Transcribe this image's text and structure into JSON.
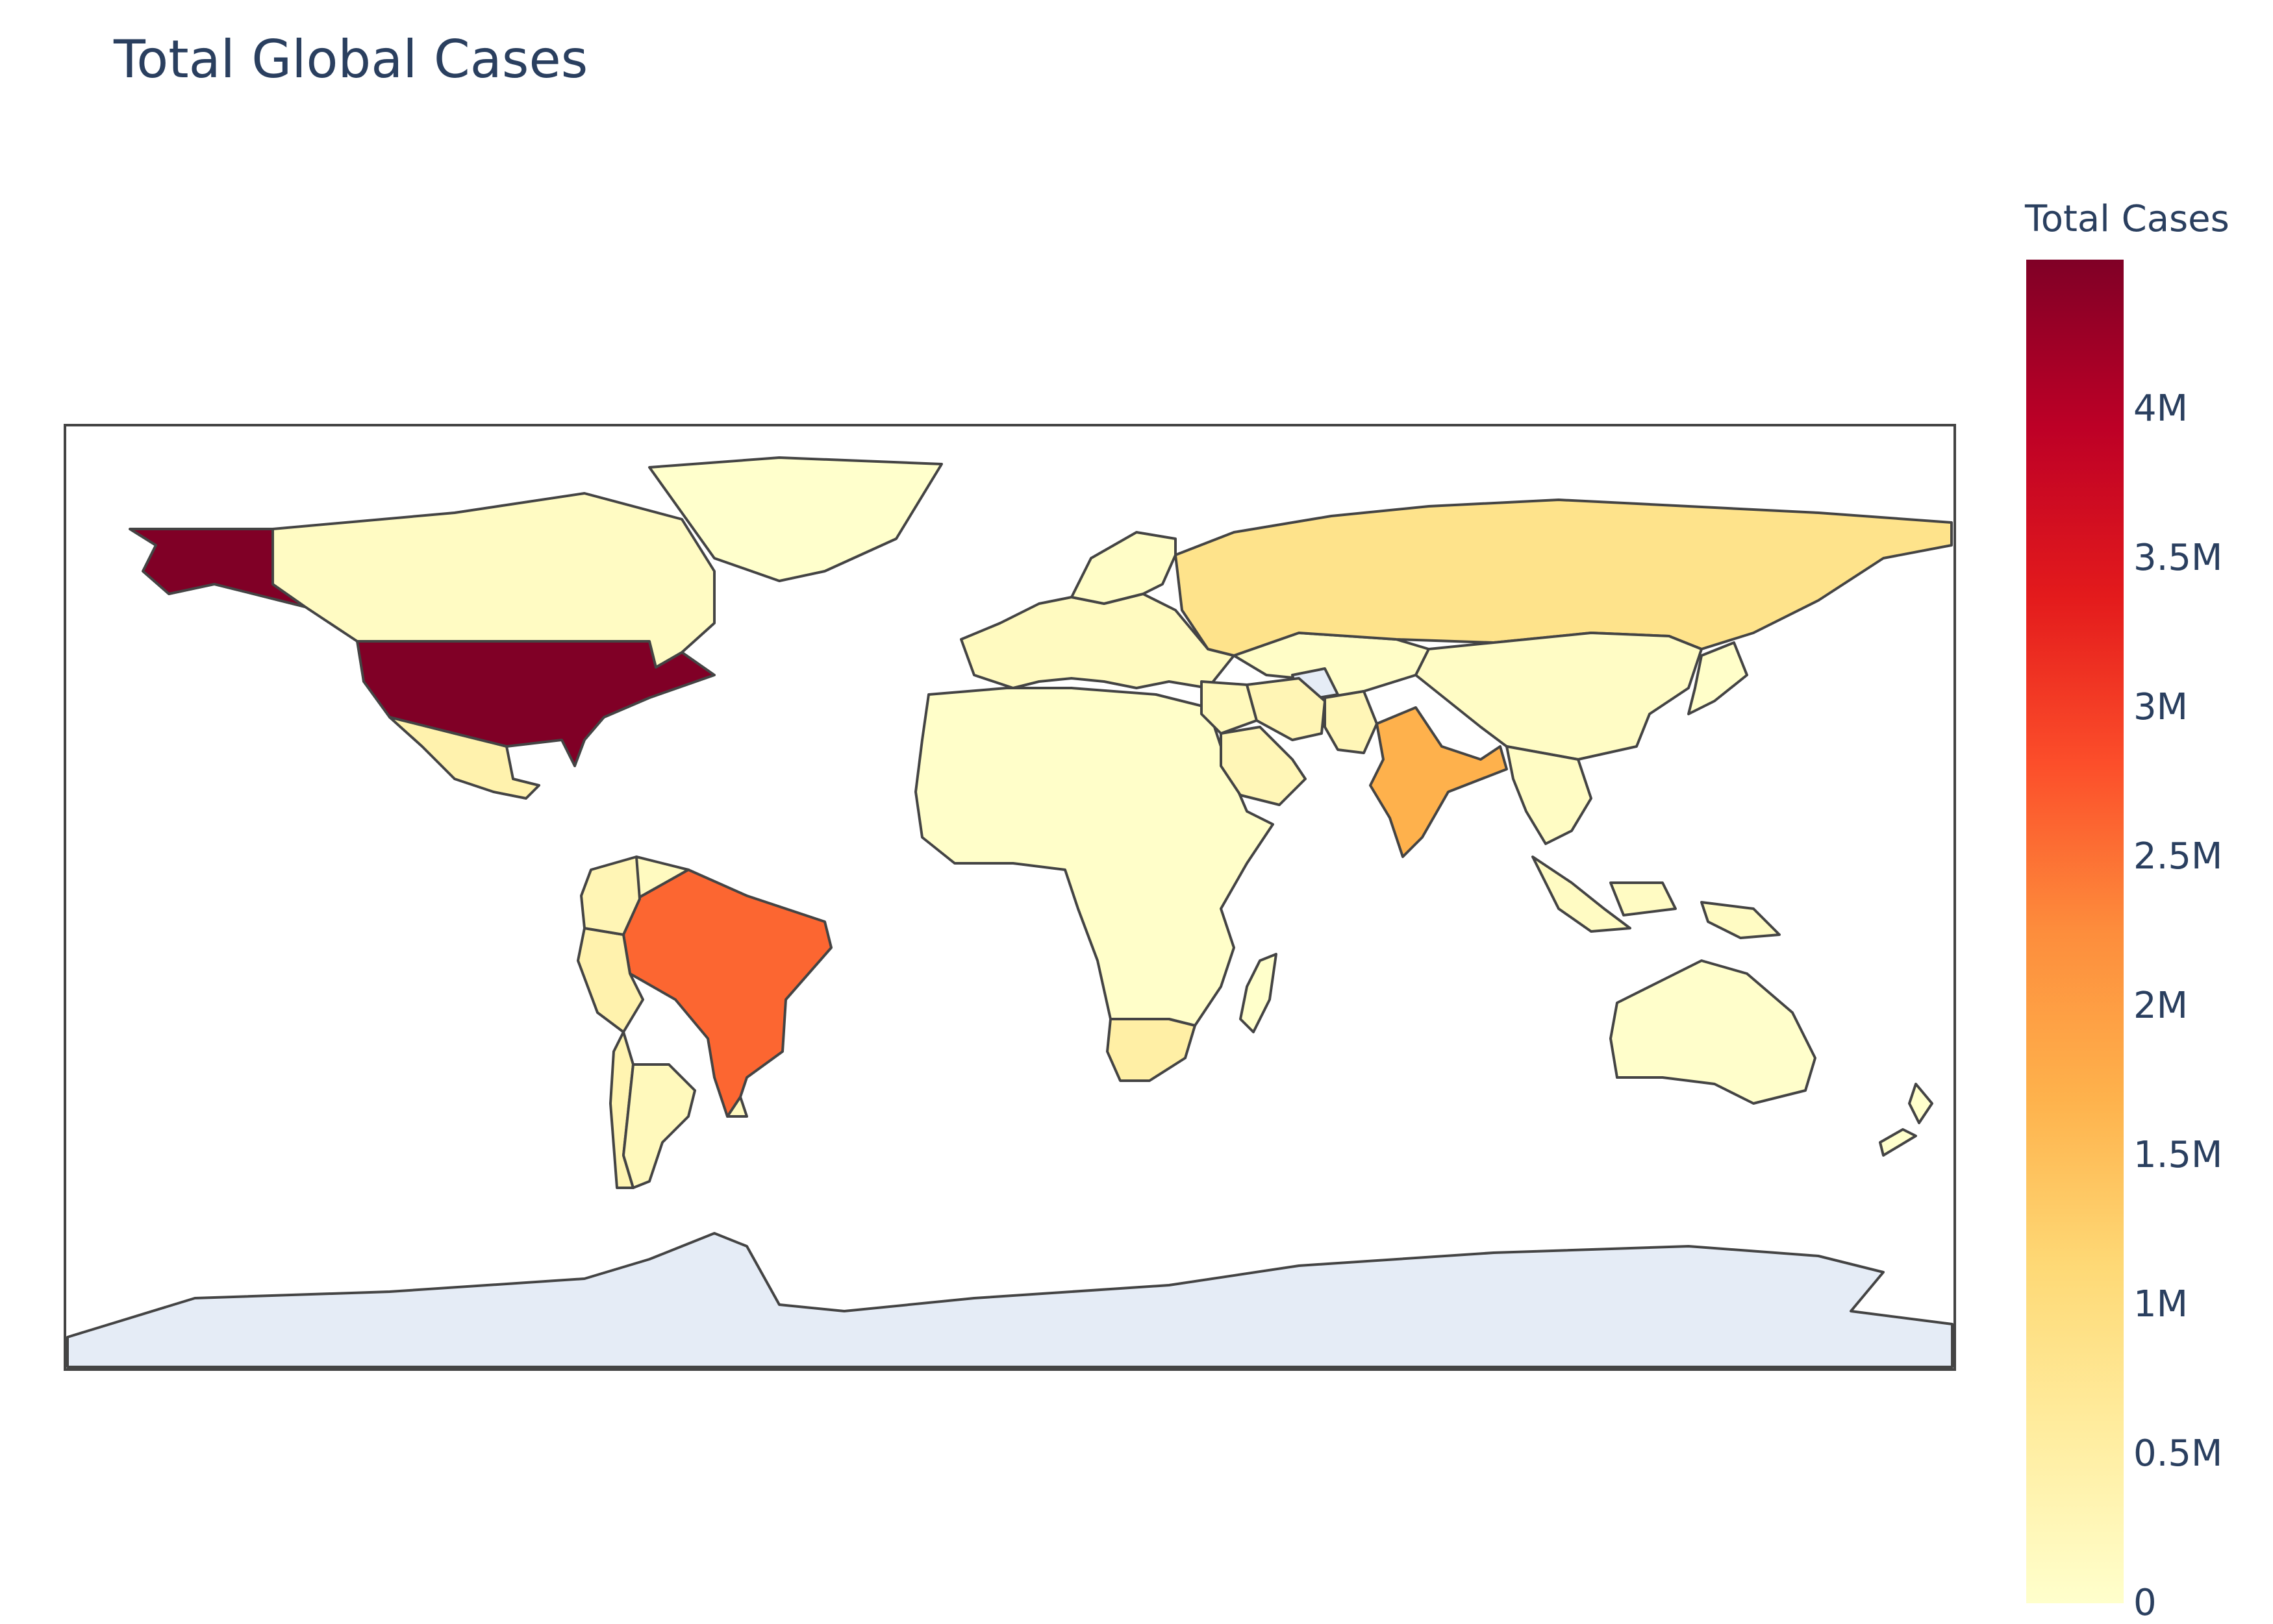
{
  "title": "Total Global Cases",
  "colorbar": {
    "title": "Total Cases",
    "max": 4500000,
    "ticks": [
      {
        "label": "0",
        "value": 0
      },
      {
        "label": "0.5M",
        "value": 500000
      },
      {
        "label": "1M",
        "value": 1000000
      },
      {
        "label": "1.5M",
        "value": 1500000
      },
      {
        "label": "2M",
        "value": 2000000
      },
      {
        "label": "2.5M",
        "value": 2500000
      },
      {
        "label": "3M",
        "value": 3000000
      },
      {
        "label": "3.5M",
        "value": 3500000
      },
      {
        "label": "4M",
        "value": 4000000
      }
    ],
    "colorscale": [
      "#ffffcc",
      "#ffeda0",
      "#fed976",
      "#feb24c",
      "#fd8d3c",
      "#fc4e2a",
      "#e31a1c",
      "#bd0026",
      "#800026"
    ]
  },
  "colors": {
    "ocean": "#ffffff",
    "land_nodata": "#e5ecf6",
    "border": "#444444",
    "text": "#2a3f5f"
  },
  "regions": [
    {
      "name": "United States",
      "cases": 4500000
    },
    {
      "name": "Brazil",
      "cases": 2600000
    },
    {
      "name": "India",
      "cases": 1700000
    },
    {
      "name": "Russia",
      "cases": 850000
    },
    {
      "name": "South Africa",
      "cases": 500000
    },
    {
      "name": "Peru",
      "cases": 400000
    },
    {
      "name": "Mexico",
      "cases": 400000
    },
    {
      "name": "Chile",
      "cases": 350000
    },
    {
      "name": "Colombia",
      "cases": 300000
    },
    {
      "name": "Iran",
      "cases": 300000
    },
    {
      "name": "Saudi Arabia",
      "cases": 270000
    },
    {
      "name": "Pakistan",
      "cases": 270000
    },
    {
      "name": "Argentina",
      "cases": 200000
    },
    {
      "name": "Canada",
      "cases": 115000
    },
    {
      "name": "China",
      "cases": 85000
    },
    {
      "name": "Australia",
      "cases": 17000
    },
    {
      "name": "Greenland",
      "cases": 14
    },
    {
      "name": "Africa",
      "cases": 40000
    },
    {
      "name": "Europe",
      "cases": 150000
    },
    {
      "name": "Middle East",
      "cases": 200000
    },
    {
      "name": "Central Asia",
      "cases": 60000
    },
    {
      "name": "Southeast Asia",
      "cases": 100000
    },
    {
      "name": "South America",
      "cases": 150000
    },
    {
      "name": "Scandinavia",
      "cases": 70000
    },
    {
      "name": "Japan",
      "cases": 40000
    },
    {
      "name": "Indonesia",
      "cases": 120000
    },
    {
      "name": "Madagascar",
      "cases": 12000
    },
    {
      "name": "New Zealand",
      "cases": 1500
    },
    {
      "name": "Antarctica",
      "cases": null
    },
    {
      "name": "Turkmenistan",
      "cases": null
    }
  ]
}
